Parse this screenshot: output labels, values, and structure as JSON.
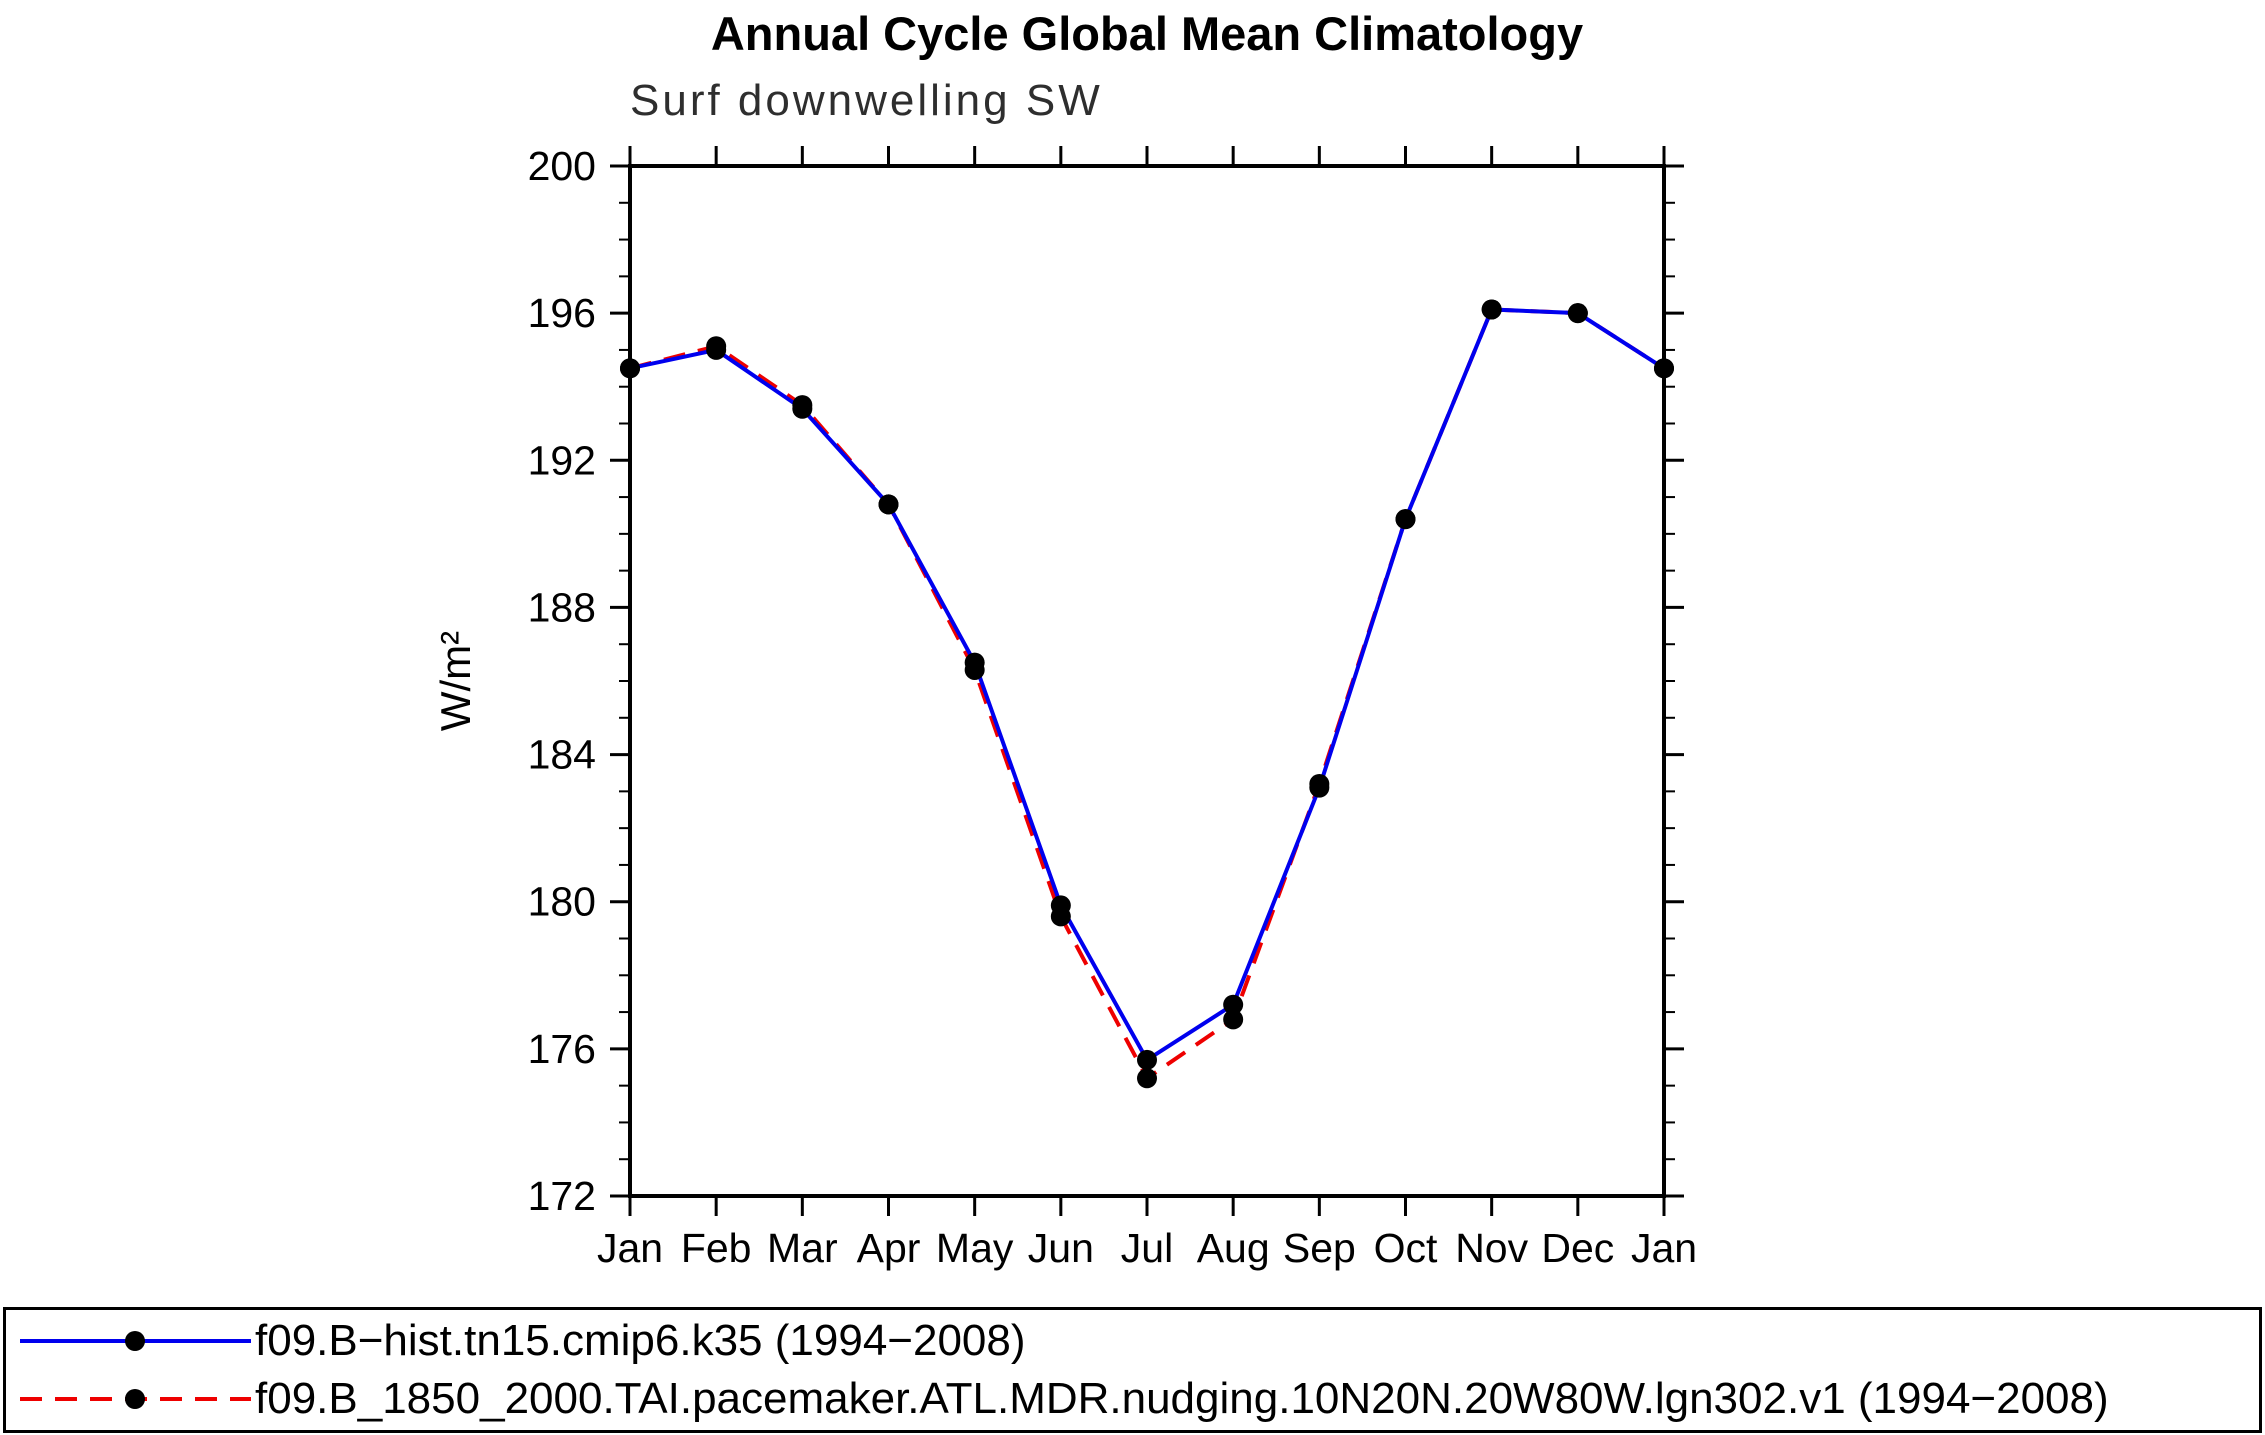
{
  "chart_data": {
    "type": "line",
    "title": "Annual Cycle Global Mean Climatology",
    "subtitle": "Surf downwelling SW",
    "xlabel": "",
    "ylabel": "W/m²",
    "ylim": [
      172,
      200
    ],
    "y_major_tick_step": 4,
    "y_minor_tick_step": 1,
    "grid": false,
    "legend_position": "bottom-left",
    "categories": [
      "Jan",
      "Feb",
      "Mar",
      "Apr",
      "May",
      "Jun",
      "Jul",
      "Aug",
      "Sep",
      "Oct",
      "Nov",
      "Dec",
      "Jan"
    ],
    "series": [
      {
        "name": "f09.B−hist.tn15.cmip6.k35 (1994−2008)",
        "color": "#0000ee",
        "style": "solid",
        "marker": "circle",
        "marker_color": "#000000",
        "values": [
          194.5,
          195.0,
          193.4,
          190.8,
          186.5,
          179.9,
          175.7,
          177.2,
          183.1,
          190.4,
          196.1,
          196.0,
          194.5
        ]
      },
      {
        "name": "f09.B_1850_2000.TAI.pacemaker.ATL.MDR.nudging.10N20N.20W80W.lgn302.v1 (1994−2008)",
        "color": "#ee0000",
        "style": "dashed",
        "marker": "circle",
        "marker_color": "#000000",
        "values": [
          194.5,
          195.1,
          193.5,
          190.8,
          186.3,
          179.6,
          175.2,
          176.8,
          183.2,
          190.4,
          196.1,
          196.0,
          194.5
        ]
      }
    ]
  }
}
